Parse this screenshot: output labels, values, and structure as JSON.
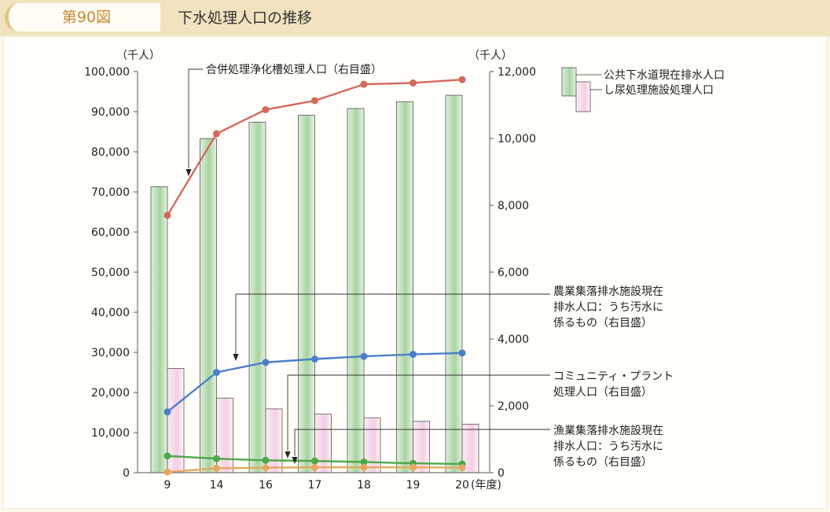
{
  "figure": {
    "number": "第90図",
    "title": "下水処理人口の推移"
  },
  "chart_data": {
    "type": "bar",
    "categories": [
      "9",
      "14",
      "16",
      "17",
      "18",
      "19",
      "20"
    ],
    "x_unit": "(年度)",
    "left_axis": {
      "unit": "（千人）",
      "ylim": [
        0,
        100000
      ],
      "ticks": [
        0,
        10000,
        20000,
        30000,
        40000,
        50000,
        60000,
        70000,
        80000,
        90000,
        100000
      ],
      "tick_labels": [
        "0",
        "10,000",
        "20,000",
        "30,000",
        "40,000",
        "50,000",
        "60,000",
        "70,000",
        "80,000",
        "90,000",
        "100,000"
      ]
    },
    "right_axis": {
      "unit": "（千人）",
      "ylim": [
        0,
        12000
      ],
      "ticks": [
        0,
        2000,
        4000,
        6000,
        8000,
        10000,
        12000
      ],
      "tick_labels": [
        "0",
        "2,000",
        "4,000",
        "6,000",
        "8,000",
        "10,000",
        "12,000"
      ]
    },
    "bar_series": [
      {
        "name": "公共下水道現在排水人口",
        "axis": "left",
        "color": "#a9d3a3",
        "values": [
          71300,
          83300,
          87400,
          89100,
          90800,
          92500,
          94100
        ]
      },
      {
        "name": "し尿処理施設処理人口",
        "axis": "left",
        "color": "#f3cfe2",
        "values": [
          26000,
          18600,
          15900,
          14600,
          13700,
          12800,
          12100
        ]
      }
    ],
    "line_series": [
      {
        "name": "合併処理浄化槽処理人口（右目盛）",
        "axis": "right",
        "color": "#d4685c",
        "values": [
          7700,
          10140,
          10860,
          11130,
          11620,
          11660,
          11760
        ]
      },
      {
        "name": "農業集落排水施設現在排水人口：うち汚水に係るもの（右目盛）",
        "axis": "right",
        "color": "#4b7fcb",
        "values": [
          1820,
          3000,
          3300,
          3400,
          3480,
          3540,
          3580
        ]
      },
      {
        "name": "コミュニティ・プラント処理人口（右目盛）",
        "axis": "right",
        "color": "#4da84a",
        "values": [
          500,
          420,
          370,
          350,
          320,
          280,
          260
        ]
      },
      {
        "name": "漁業集落排水施設現在排水人口：うち汚水に係るもの（右目盛）",
        "axis": "right",
        "color": "#e6a95f",
        "values": [
          20,
          130,
          150,
          160,
          160,
          160,
          150
        ]
      }
    ],
    "annotations": {
      "joka": "合併処理浄化槽処理人口（右目盛）",
      "nogyo": [
        "農業集落排水施設現在",
        "排水人口：うち汚水に",
        "係るもの（右目盛）"
      ],
      "community": [
        "コミュニティ・プラント",
        "処理人口（右目盛）"
      ],
      "gyogyo": [
        "漁業集落排水施設現在",
        "排水人口：うち汚水に",
        "係るもの（右目盛）"
      ]
    },
    "legend": [
      "公共下水道現在排水人口",
      "し尿処理施設処理人口"
    ],
    "grid": false,
    "legend_position": "top-right"
  }
}
